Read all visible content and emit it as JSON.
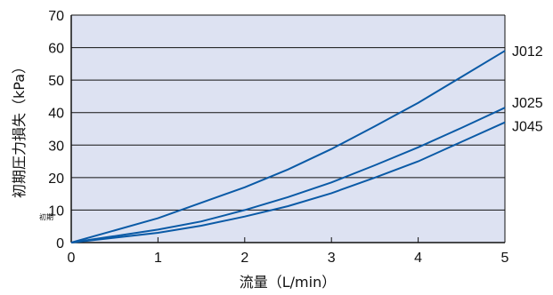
{
  "chart_data": {
    "type": "line",
    "xlabel": "流量（L/min）",
    "ylabel": "初期圧力損失（kPa）",
    "annotation": "初期",
    "xlim": [
      0,
      5
    ],
    "ylim": [
      0,
      70
    ],
    "x_ticks": [
      "0",
      "1",
      "2",
      "3",
      "4",
      "5"
    ],
    "y_ticks": [
      "0",
      "10",
      "20",
      "30",
      "40",
      "50",
      "60",
      "70"
    ],
    "grid": "horizontal",
    "plot_background": "#dde2f2",
    "line_color": "#0a5aa6",
    "series": [
      {
        "name": "J012",
        "x": [
          0,
          1,
          2,
          2.5,
          3,
          3.5,
          4,
          4.5,
          5
        ],
        "y": [
          0,
          7.5,
          17,
          22.5,
          28.8,
          35.8,
          43,
          51,
          59
        ]
      },
      {
        "name": "J025",
        "x": [
          0,
          1,
          1.5,
          2,
          2.5,
          3,
          3.5,
          4,
          4.5,
          5
        ],
        "y": [
          0,
          4,
          6.5,
          10,
          14,
          18.5,
          23.8,
          29.3,
          35.3,
          41.5
        ]
      },
      {
        "name": "J045",
        "x": [
          0,
          1,
          1.5,
          2,
          2.5,
          3,
          3.5,
          4,
          4.5,
          5
        ],
        "y": [
          0,
          3,
          5.2,
          8,
          11.2,
          15.2,
          20,
          25,
          31,
          37
        ]
      }
    ]
  }
}
